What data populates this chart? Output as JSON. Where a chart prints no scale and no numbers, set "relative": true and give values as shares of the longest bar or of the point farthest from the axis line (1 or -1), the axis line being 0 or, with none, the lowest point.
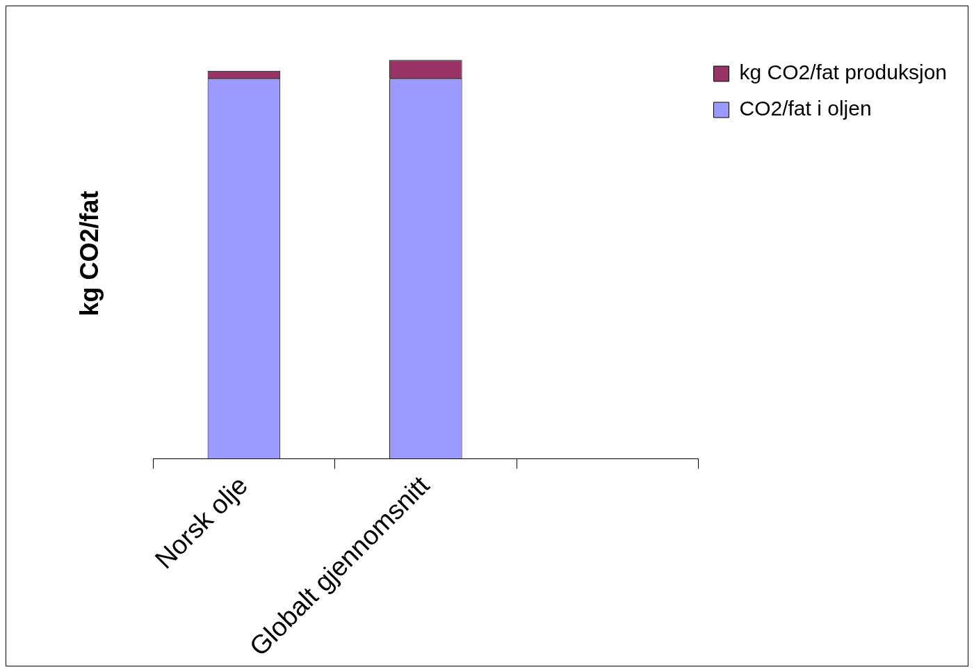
{
  "chart_data": {
    "type": "bar",
    "ylabel": "kg CO2/fat",
    "categories": [
      "Norsk olje",
      "Globalt gjennomsnitt",
      null
    ],
    "stacked": true,
    "relative": true,
    "legend": "right",
    "grid": false,
    "series": [
      {
        "name": "CO2/fat i oljen",
        "color": "#9999ff",
        "values": [
          0.953,
          0.953,
          null
        ]
      },
      {
        "name": "kg CO2/fat produksjon",
        "color": "#993366",
        "values": [
          0.02,
          0.047,
          null
        ]
      }
    ]
  }
}
